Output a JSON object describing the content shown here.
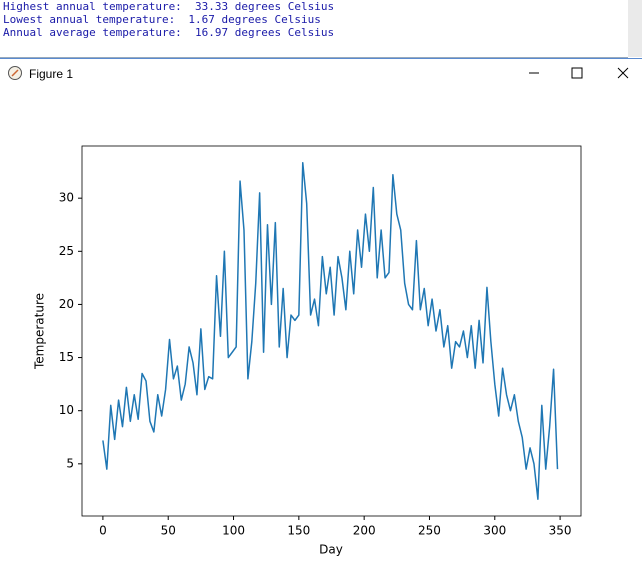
{
  "console": {
    "lines": [
      "Highest annual temperature:  33.33 degrees Celsius",
      "Lowest annual temperature:  1.67 degrees Celsius",
      "Annual average temperature:  16.97 degrees Celsius"
    ]
  },
  "window": {
    "title": "Figure 1"
  },
  "chart_data": {
    "type": "line",
    "xlabel": "Day",
    "ylabel": "Temperature",
    "color": "#1f77b4",
    "x": [
      0,
      3,
      6,
      9,
      12,
      15,
      18,
      21,
      24,
      27,
      30,
      33,
      36,
      39,
      42,
      45,
      48,
      51,
      54,
      57,
      60,
      63,
      66,
      69,
      72,
      75,
      78,
      81,
      84,
      87,
      90,
      93,
      96,
      99,
      102,
      105,
      108,
      111,
      114,
      117,
      120,
      123,
      126,
      129,
      132,
      135,
      138,
      141,
      144,
      147,
      150,
      153,
      156,
      159,
      162,
      165,
      168,
      171,
      174,
      177,
      180,
      183,
      186,
      189,
      192,
      195,
      198,
      201,
      204,
      207,
      210,
      213,
      216,
      219,
      222,
      225,
      228,
      231,
      234,
      237,
      240,
      243,
      246,
      249,
      252,
      255,
      258,
      261,
      264,
      267,
      270,
      273,
      276,
      279,
      282,
      285,
      288,
      291,
      294,
      297,
      300,
      303,
      306,
      309,
      312,
      315,
      318,
      321,
      324,
      327,
      330,
      333,
      336,
      339,
      342,
      345,
      348
    ],
    "values": [
      7.2,
      4.5,
      10.5,
      7.3,
      11.0,
      8.5,
      12.2,
      9.0,
      11.5,
      9.2,
      13.5,
      12.8,
      9.0,
      8.0,
      11.5,
      9.5,
      12.0,
      16.7,
      13.0,
      14.2,
      11.0,
      12.5,
      16.0,
      14.5,
      11.5,
      17.7,
      12.0,
      13.2,
      13.0,
      22.7,
      17.0,
      25.0,
      15.0,
      15.5,
      16.0,
      31.6,
      27.0,
      13.0,
      16.5,
      22.0,
      30.5,
      15.5,
      27.5,
      20.0,
      27.7,
      16.0,
      21.5,
      15.0,
      19.0,
      18.5,
      19.0,
      33.33,
      29.5,
      19.0,
      20.5,
      18.0,
      24.5,
      21.0,
      23.5,
      19.0,
      24.5,
      22.5,
      19.5,
      25.0,
      21.0,
      27.0,
      23.5,
      28.5,
      25.0,
      31.0,
      22.5,
      27.0,
      22.5,
      23.0,
      32.2,
      28.5,
      27.0,
      22.0,
      20.0,
      19.5,
      26.0,
      19.5,
      21.5,
      18.0,
      20.5,
      17.5,
      19.5,
      16.0,
      18.0,
      14.0,
      16.5,
      16.0,
      17.5,
      15.0,
      18.0,
      14.0,
      18.5,
      14.5,
      21.6,
      16.5,
      12.5,
      9.5,
      14.0,
      11.5,
      10.0,
      11.5,
      9.0,
      7.5,
      4.5,
      6.5,
      5.0,
      1.67,
      10.5,
      4.5,
      8.5,
      13.9,
      4.5
    ],
    "xlim": [
      -16,
      366
    ],
    "ylim": [
      0.09,
      34.91
    ],
    "xticks": [
      0,
      50,
      100,
      150,
      200,
      250,
      300,
      350
    ],
    "yticks": [
      5,
      10,
      15,
      20,
      25,
      30
    ]
  }
}
